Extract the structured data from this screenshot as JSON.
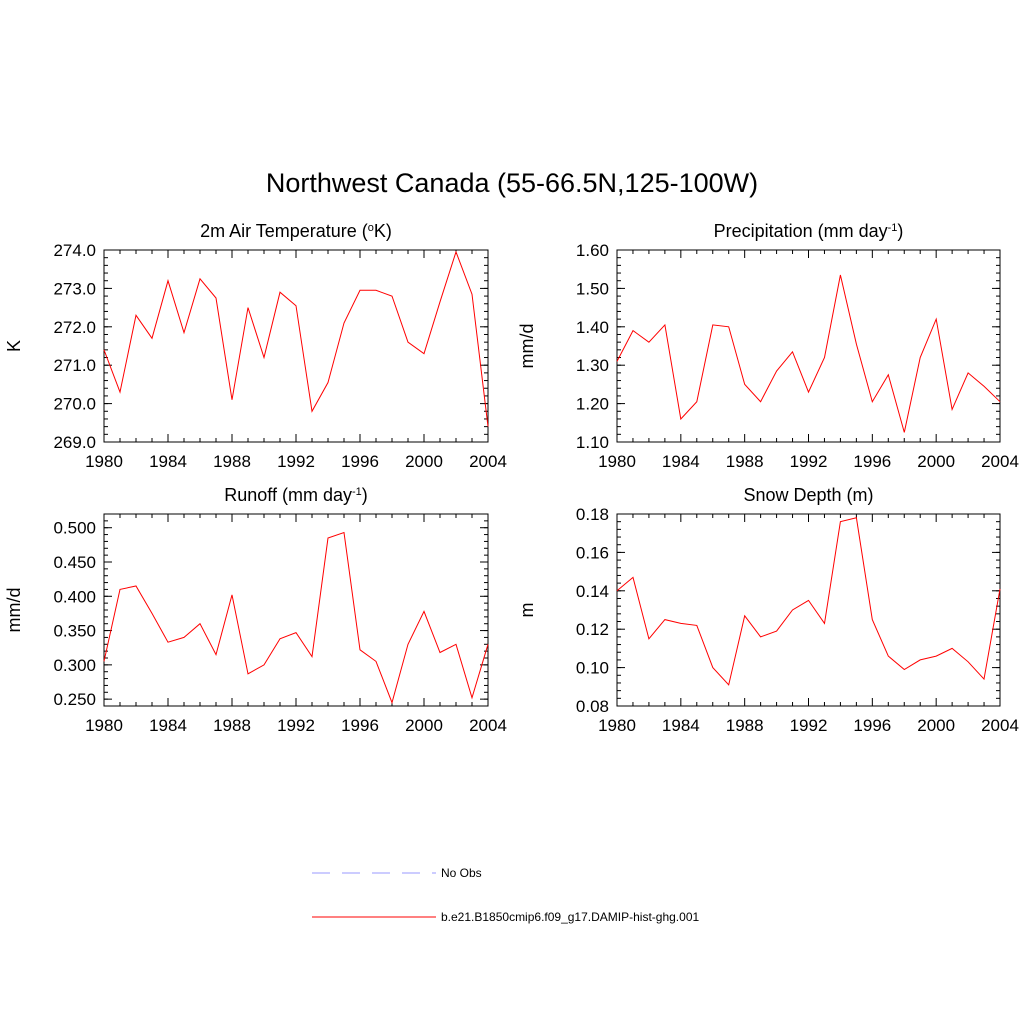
{
  "title": "Northwest Canada (55-66.5N,125-100W)",
  "colors": {
    "model_line": "#ff0000",
    "obs_line": "#9999ff",
    "axis": "#000000"
  },
  "legend": {
    "obs_label": "No Obs",
    "model_label": "b.e21.B1850cmip6.f09_g17.DAMIP-hist-ghg.001"
  },
  "chart_data": [
    {
      "type": "line",
      "title": "2m Air Temperature (",
      "title_sup": "o",
      "title_suffix": "K)",
      "ylabel": "K",
      "xlim": [
        1980,
        2004
      ],
      "ylim": [
        269.0,
        274.0
      ],
      "yticks": [
        "269.0",
        "270.0",
        "271.0",
        "272.0",
        "273.0",
        "274.0"
      ],
      "xticks": [
        "1980",
        "1984",
        "1988",
        "1992",
        "1996",
        "2000",
        "2004"
      ],
      "x": [
        1980,
        1981,
        1982,
        1983,
        1984,
        1985,
        1986,
        1987,
        1988,
        1989,
        1990,
        1991,
        1992,
        1993,
        1994,
        1995,
        1996,
        1997,
        1998,
        1999,
        2000,
        2001,
        2002,
        2003,
        2004
      ],
      "series": [
        {
          "values": [
            271.4,
            270.3,
            272.3,
            271.7,
            273.2,
            271.85,
            273.25,
            272.75,
            270.1,
            272.5,
            271.2,
            272.9,
            272.55,
            269.8,
            270.55,
            272.1,
            272.95,
            272.95,
            272.8,
            271.6,
            271.3,
            272.65,
            273.95,
            272.85,
            269.4
          ]
        }
      ]
    },
    {
      "type": "line",
      "title": "Precipitation (mm day",
      "title_sup": "-1",
      "title_suffix": ")",
      "ylabel": "mm/d",
      "xlim": [
        1980,
        2004
      ],
      "ylim": [
        1.1,
        1.6
      ],
      "yticks": [
        "1.10",
        "1.20",
        "1.30",
        "1.40",
        "1.50",
        "1.60"
      ],
      "xticks": [
        "1980",
        "1984",
        "1988",
        "1992",
        "1996",
        "2000",
        "2004"
      ],
      "x": [
        1980,
        1981,
        1982,
        1983,
        1984,
        1985,
        1986,
        1987,
        1988,
        1989,
        1990,
        1991,
        1992,
        1993,
        1994,
        1995,
        1996,
        1997,
        1998,
        1999,
        2000,
        2001,
        2002,
        2003,
        2004
      ],
      "series": [
        {
          "values": [
            1.31,
            1.39,
            1.36,
            1.405,
            1.16,
            1.205,
            1.405,
            1.4,
            1.25,
            1.205,
            1.285,
            1.335,
            1.23,
            1.32,
            1.535,
            1.355,
            1.205,
            1.275,
            1.125,
            1.32,
            1.42,
            1.185,
            1.28,
            1.245,
            1.205
          ]
        }
      ]
    },
    {
      "type": "line",
      "title": "Runoff (mm day",
      "title_sup": "-1",
      "title_suffix": ")",
      "ylabel": "mm/d",
      "xlim": [
        1980,
        2004
      ],
      "ylim": [
        0.24,
        0.52
      ],
      "yticks": [
        "0.250",
        "0.300",
        "0.350",
        "0.400",
        "0.450",
        "0.500"
      ],
      "ytick_values": [
        0.25,
        0.3,
        0.35,
        0.4,
        0.45,
        0.5
      ],
      "xticks": [
        "1980",
        "1984",
        "1988",
        "1992",
        "1996",
        "2000",
        "2004"
      ],
      "x": [
        1980,
        1981,
        1982,
        1983,
        1984,
        1985,
        1986,
        1987,
        1988,
        1989,
        1990,
        1991,
        1992,
        1993,
        1994,
        1995,
        1996,
        1997,
        1998,
        1999,
        2000,
        2001,
        2002,
        2003,
        2004
      ],
      "series": [
        {
          "values": [
            0.305,
            0.41,
            0.415,
            0.375,
            0.333,
            0.34,
            0.36,
            0.315,
            0.402,
            0.287,
            0.3,
            0.338,
            0.347,
            0.312,
            0.485,
            0.493,
            0.322,
            0.305,
            0.245,
            0.33,
            0.378,
            0.318,
            0.33,
            0.252,
            0.33
          ]
        }
      ]
    },
    {
      "type": "line",
      "title": "Snow Depth (m)",
      "title_sup": "",
      "title_suffix": "",
      "ylabel": "m",
      "xlim": [
        1980,
        2004
      ],
      "ylim": [
        0.08,
        0.18
      ],
      "yticks": [
        "0.08",
        "0.10",
        "0.12",
        "0.14",
        "0.16",
        "0.18"
      ],
      "xticks": [
        "1980",
        "1984",
        "1988",
        "1992",
        "1996",
        "2000",
        "2004"
      ],
      "x": [
        1980,
        1981,
        1982,
        1983,
        1984,
        1985,
        1986,
        1987,
        1988,
        1989,
        1990,
        1991,
        1992,
        1993,
        1994,
        1995,
        1996,
        1997,
        1998,
        1999,
        2000,
        2001,
        2002,
        2003,
        2004
      ],
      "series": [
        {
          "values": [
            0.14,
            0.147,
            0.115,
            0.125,
            0.123,
            0.122,
            0.1,
            0.091,
            0.127,
            0.116,
            0.119,
            0.13,
            0.135,
            0.123,
            0.176,
            0.178,
            0.125,
            0.106,
            0.099,
            0.104,
            0.106,
            0.11,
            0.103,
            0.094,
            0.141
          ]
        }
      ]
    }
  ]
}
